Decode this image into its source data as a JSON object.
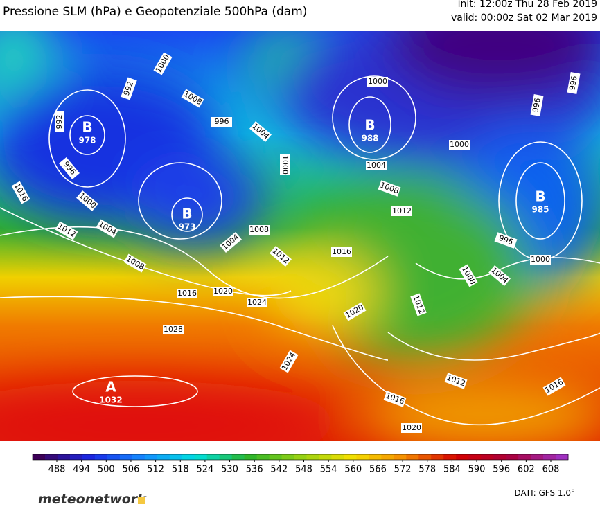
{
  "header": {
    "title": "Pressione SLM (hPa) e Geopotenziale 500hPa (dam)",
    "init": "init: 12:00z Thu 28 Feb 2019",
    "valid": "valid: 00:00z Sat 02 Mar 2019"
  },
  "isobar_labels": [
    1000,
    992,
    1008,
    996,
    1004,
    1000,
    992,
    996,
    1016,
    1000,
    1004,
    1012,
    1008,
    1004,
    1008,
    1012,
    1016,
    1016,
    1020,
    1024,
    1028,
    1024,
    1020,
    1000,
    1000,
    1004,
    1008,
    1012,
    996,
    996,
    996,
    1000,
    1008,
    1004,
    1012,
    1012,
    1016,
    1016,
    1020
  ],
  "centers": [
    {
      "letter": "B",
      "value": 978
    },
    {
      "letter": "B",
      "value": 973
    },
    {
      "letter": "B",
      "value": 988
    },
    {
      "letter": "B",
      "value": 985
    },
    {
      "letter": "A",
      "value": 1032
    }
  ],
  "colorbar": {
    "ticks": [
      488,
      494,
      500,
      506,
      512,
      518,
      524,
      530,
      536,
      542,
      548,
      554,
      560,
      566,
      572,
      578,
      584,
      590,
      596,
      602,
      608
    ]
  },
  "footer": {
    "logo": "meteonetwork",
    "source": "DATI: GFS 1.0°"
  }
}
